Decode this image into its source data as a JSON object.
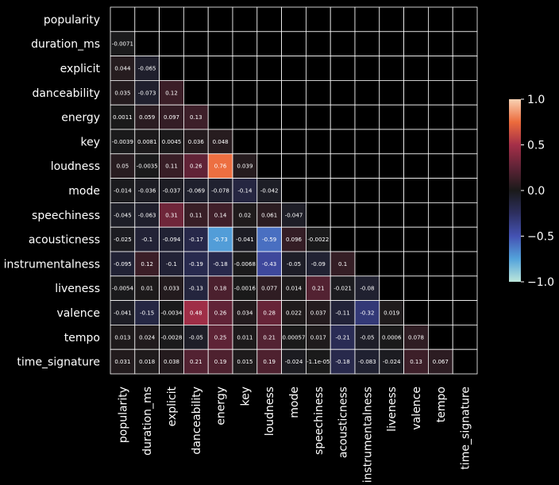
{
  "chart_data": {
    "type": "heatmap",
    "mask": "upper-triangle-and-diagonal",
    "variables": [
      "popularity",
      "duration_ms",
      "explicit",
      "danceability",
      "energy",
      "key",
      "loudness",
      "mode",
      "speechiness",
      "acousticness",
      "instrumentalness",
      "liveness",
      "valence",
      "tempo",
      "time_signature"
    ],
    "matrix": [
      [],
      [
        -0.0071
      ],
      [
        0.044,
        -0.065
      ],
      [
        0.035,
        -0.073,
        0.12
      ],
      [
        0.0011,
        0.059,
        0.097,
        0.13
      ],
      [
        -0.0039,
        0.0081,
        0.0045,
        0.036,
        0.048
      ],
      [
        0.05,
        -0.0035,
        0.11,
        0.26,
        0.76,
        0.039
      ],
      [
        -0.014,
        -0.036,
        -0.037,
        -0.069,
        -0.078,
        -0.14,
        -0.042
      ],
      [
        -0.045,
        -0.063,
        0.31,
        0.11,
        0.14,
        0.02,
        0.061,
        -0.047
      ],
      [
        -0.025,
        -0.1,
        -0.094,
        -0.17,
        -0.73,
        -0.041,
        -0.59,
        0.096,
        -0.0022
      ],
      [
        -0.095,
        0.12,
        -0.1,
        -0.19,
        -0.18,
        -0.0068,
        -0.43,
        -0.05,
        -0.09,
        0.1
      ],
      [
        -0.0054,
        0.01,
        0.033,
        -0.13,
        0.18,
        -0.0016,
        0.077,
        0.014,
        0.21,
        -0.021,
        -0.08
      ],
      [
        -0.041,
        -0.15,
        -0.0034,
        0.48,
        0.26,
        0.034,
        0.28,
        0.022,
        0.037,
        -0.11,
        -0.32,
        0.019
      ],
      [
        0.013,
        0.024,
        -0.0028,
        -0.05,
        0.25,
        0.011,
        0.21,
        0.00057,
        0.017,
        -0.21,
        -0.05,
        0.0006,
        0.078
      ],
      [
        0.031,
        0.018,
        0.038,
        0.21,
        0.19,
        0.015,
        0.19,
        -0.024,
        -1.1e-05,
        -0.18,
        -0.083,
        -0.024,
        0.13,
        0.067
      ]
    ],
    "matrix_labels": [
      [],
      [
        "-0.0071"
      ],
      [
        "0.044",
        "-0.065"
      ],
      [
        "0.035",
        "-0.073",
        "0.12"
      ],
      [
        "0.0011",
        "0.059",
        "0.097",
        "0.13"
      ],
      [
        "-0.0039",
        "0.0081",
        "0.0045",
        "0.036",
        "0.048"
      ],
      [
        "0.05",
        "-0.0035",
        "0.11",
        "0.26",
        "0.76",
        "0.039"
      ],
      [
        "-0.014",
        "-0.036",
        "-0.037",
        "-0.069",
        "-0.078",
        "-0.14",
        "-0.042"
      ],
      [
        "-0.045",
        "-0.063",
        "0.31",
        "0.11",
        "0.14",
        "0.02",
        "0.061",
        "-0.047"
      ],
      [
        "-0.025",
        "-0.1",
        "-0.094",
        "-0.17",
        "-0.73",
        "-0.041",
        "-0.59",
        "0.096",
        "-0.0022"
      ],
      [
        "-0.095",
        "0.12",
        "-0.1",
        "-0.19",
        "-0.18",
        "-0.0068",
        "-0.43",
        "-0.05",
        "-0.09",
        "0.1"
      ],
      [
        "-0.0054",
        "0.01",
        "0.033",
        "-0.13",
        "0.18",
        "-0.0016",
        "0.077",
        "0.014",
        "0.21",
        "-0.021",
        "-0.08"
      ],
      [
        "-0.041",
        "-0.15",
        "-0.0034",
        "0.48",
        "0.26",
        "0.034",
        "0.28",
        "0.022",
        "0.037",
        "-0.11",
        "-0.32",
        "0.019"
      ],
      [
        "0.013",
        "0.024",
        "-0.0028",
        "-0.05",
        "0.25",
        "0.011",
        "0.21",
        "0.00057",
        "0.017",
        "-0.21",
        "-0.05",
        "0.0006",
        "0.078"
      ],
      [
        "0.031",
        "0.018",
        "0.038",
        "0.21",
        "0.19",
        "0.015",
        "0.19",
        "-0.024",
        "-1.1e-05",
        "-0.18",
        "-0.083",
        "-0.024",
        "0.13",
        "0.067"
      ]
    ],
    "vmin": -1.0,
    "vmax": 1.0,
    "colorbar": {
      "ticks": [
        1.0,
        0.5,
        0.0,
        -0.5,
        -1.0
      ],
      "tick_labels": [
        "1.0",
        "0.5",
        "0.0",
        "−0.5",
        "−1.0"
      ]
    },
    "colormap": {
      "name": "icefire",
      "stops": [
        {
          "v": -1.0,
          "color": "#bde7db"
        },
        {
          "v": -0.75,
          "color": "#53a3db"
        },
        {
          "v": -0.5,
          "color": "#4452b3"
        },
        {
          "v": -0.25,
          "color": "#2d2f60"
        },
        {
          "v": 0.0,
          "color": "#1a1a1a"
        },
        {
          "v": 0.25,
          "color": "#5e2336"
        },
        {
          "v": 0.5,
          "color": "#a52f48"
        },
        {
          "v": 0.75,
          "color": "#ec6b3c"
        },
        {
          "v": 1.0,
          "color": "#f9d2b4"
        }
      ]
    },
    "background": "#000000",
    "grid_line_color": "#ffffff",
    "title": "",
    "xlabel": "",
    "ylabel": ""
  }
}
